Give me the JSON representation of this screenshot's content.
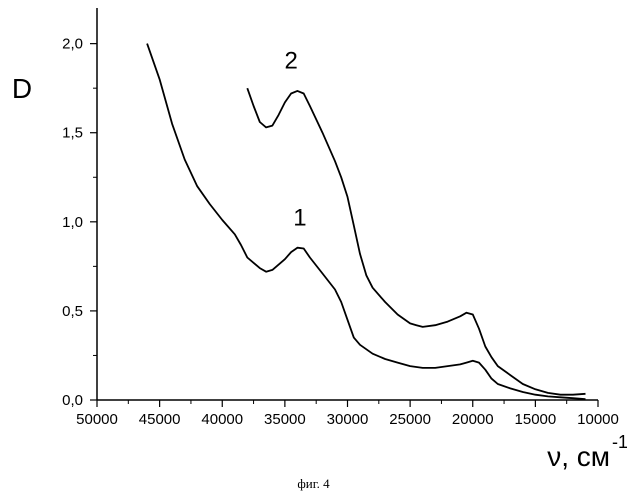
{
  "chart_data": {
    "type": "line",
    "ylabel": "D",
    "xlabel": "ν, см",
    "xlabel_superscript": "-1",
    "xlim": [
      50000,
      10000
    ],
    "ylim": [
      0,
      2.2
    ],
    "x_ticks": [
      50000,
      45000,
      40000,
      35000,
      30000,
      25000,
      20000,
      15000,
      10000
    ],
    "x_tick_labels": [
      "50000",
      "45000",
      "40000",
      "35000",
      "30000",
      "25000",
      "20000",
      "15000",
      "10000"
    ],
    "y_ticks": [
      0,
      0.5,
      1.0,
      1.5,
      2.0
    ],
    "y_tick_labels": [
      "0,0",
      "0,5",
      "1,0",
      "1,5",
      "2,0"
    ],
    "grid": false,
    "series": [
      {
        "name": "1",
        "x": [
          46000,
          45000,
          44000,
          43000,
          42000,
          41000,
          40000,
          39000,
          38500,
          38000,
          37000,
          36500,
          36000,
          35000,
          34500,
          34000,
          33500,
          33000,
          32000,
          31000,
          30500,
          30000,
          29500,
          29000,
          28000,
          27000,
          26000,
          25000,
          24000,
          23000,
          22000,
          21000,
          20500,
          20000,
          19500,
          19000,
          18500,
          18000,
          17000,
          16000,
          15000,
          14000,
          13000,
          12000,
          11000
        ],
        "y": [
          2.0,
          1.8,
          1.55,
          1.35,
          1.2,
          1.1,
          1.01,
          0.93,
          0.87,
          0.8,
          0.74,
          0.72,
          0.73,
          0.79,
          0.83,
          0.855,
          0.85,
          0.8,
          0.71,
          0.62,
          0.55,
          0.45,
          0.35,
          0.31,
          0.26,
          0.23,
          0.21,
          0.19,
          0.18,
          0.18,
          0.19,
          0.2,
          0.21,
          0.22,
          0.21,
          0.17,
          0.12,
          0.09,
          0.065,
          0.045,
          0.03,
          0.02,
          0.015,
          0.01,
          0.005
        ]
      },
      {
        "name": "2",
        "x": [
          38000,
          37500,
          37000,
          36500,
          36000,
          35500,
          35000,
          34500,
          34000,
          33500,
          33000,
          32000,
          31000,
          30500,
          30000,
          29500,
          29000,
          28500,
          28000,
          27000,
          26000,
          25000,
          24500,
          24000,
          23000,
          22000,
          21000,
          20500,
          20000,
          19500,
          19000,
          18500,
          18000,
          17000,
          16000,
          15000,
          14000,
          13000,
          12000,
          11000
        ],
        "y": [
          1.75,
          1.65,
          1.56,
          1.53,
          1.54,
          1.6,
          1.67,
          1.72,
          1.735,
          1.72,
          1.65,
          1.5,
          1.34,
          1.25,
          1.14,
          0.98,
          0.82,
          0.7,
          0.63,
          0.55,
          0.48,
          0.43,
          0.42,
          0.41,
          0.42,
          0.44,
          0.47,
          0.49,
          0.48,
          0.4,
          0.3,
          0.24,
          0.19,
          0.14,
          0.09,
          0.06,
          0.04,
          0.03,
          0.03,
          0.035
        ]
      }
    ],
    "curve_labels": [
      "1",
      "2"
    ]
  },
  "caption": "фиг. 4"
}
